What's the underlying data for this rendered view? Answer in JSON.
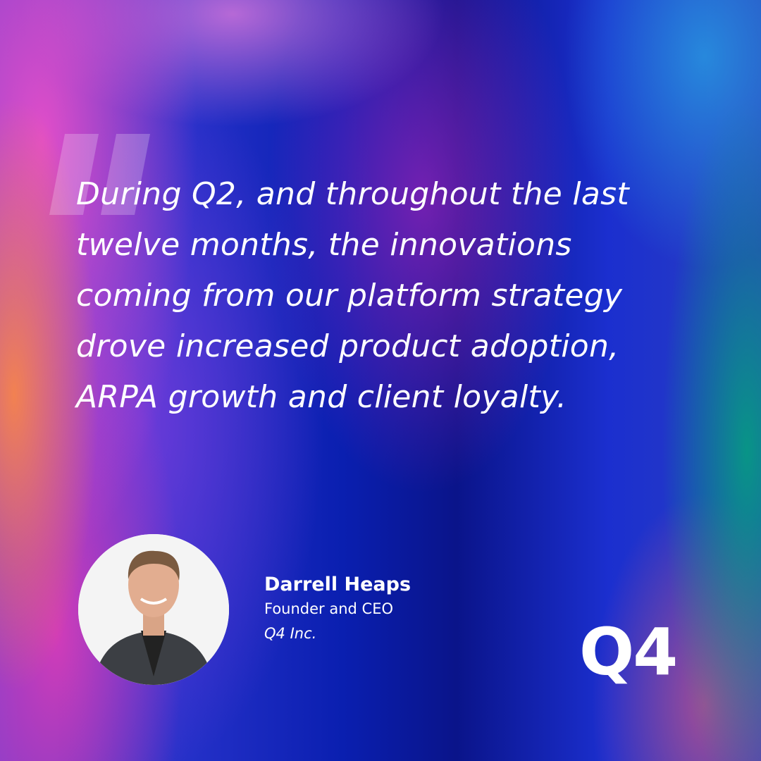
{
  "quote": {
    "lines": [
      "During Q2, and throughout the last",
      "twelve months, the innovations",
      "coming from our platform strategy",
      "drove increased product adoption,",
      "ARPA growth and client loyalty."
    ]
  },
  "person": {
    "name": "Darrell Heaps",
    "title": "Founder and CEO",
    "company": "Q4 Inc."
  },
  "logo": "Q4"
}
